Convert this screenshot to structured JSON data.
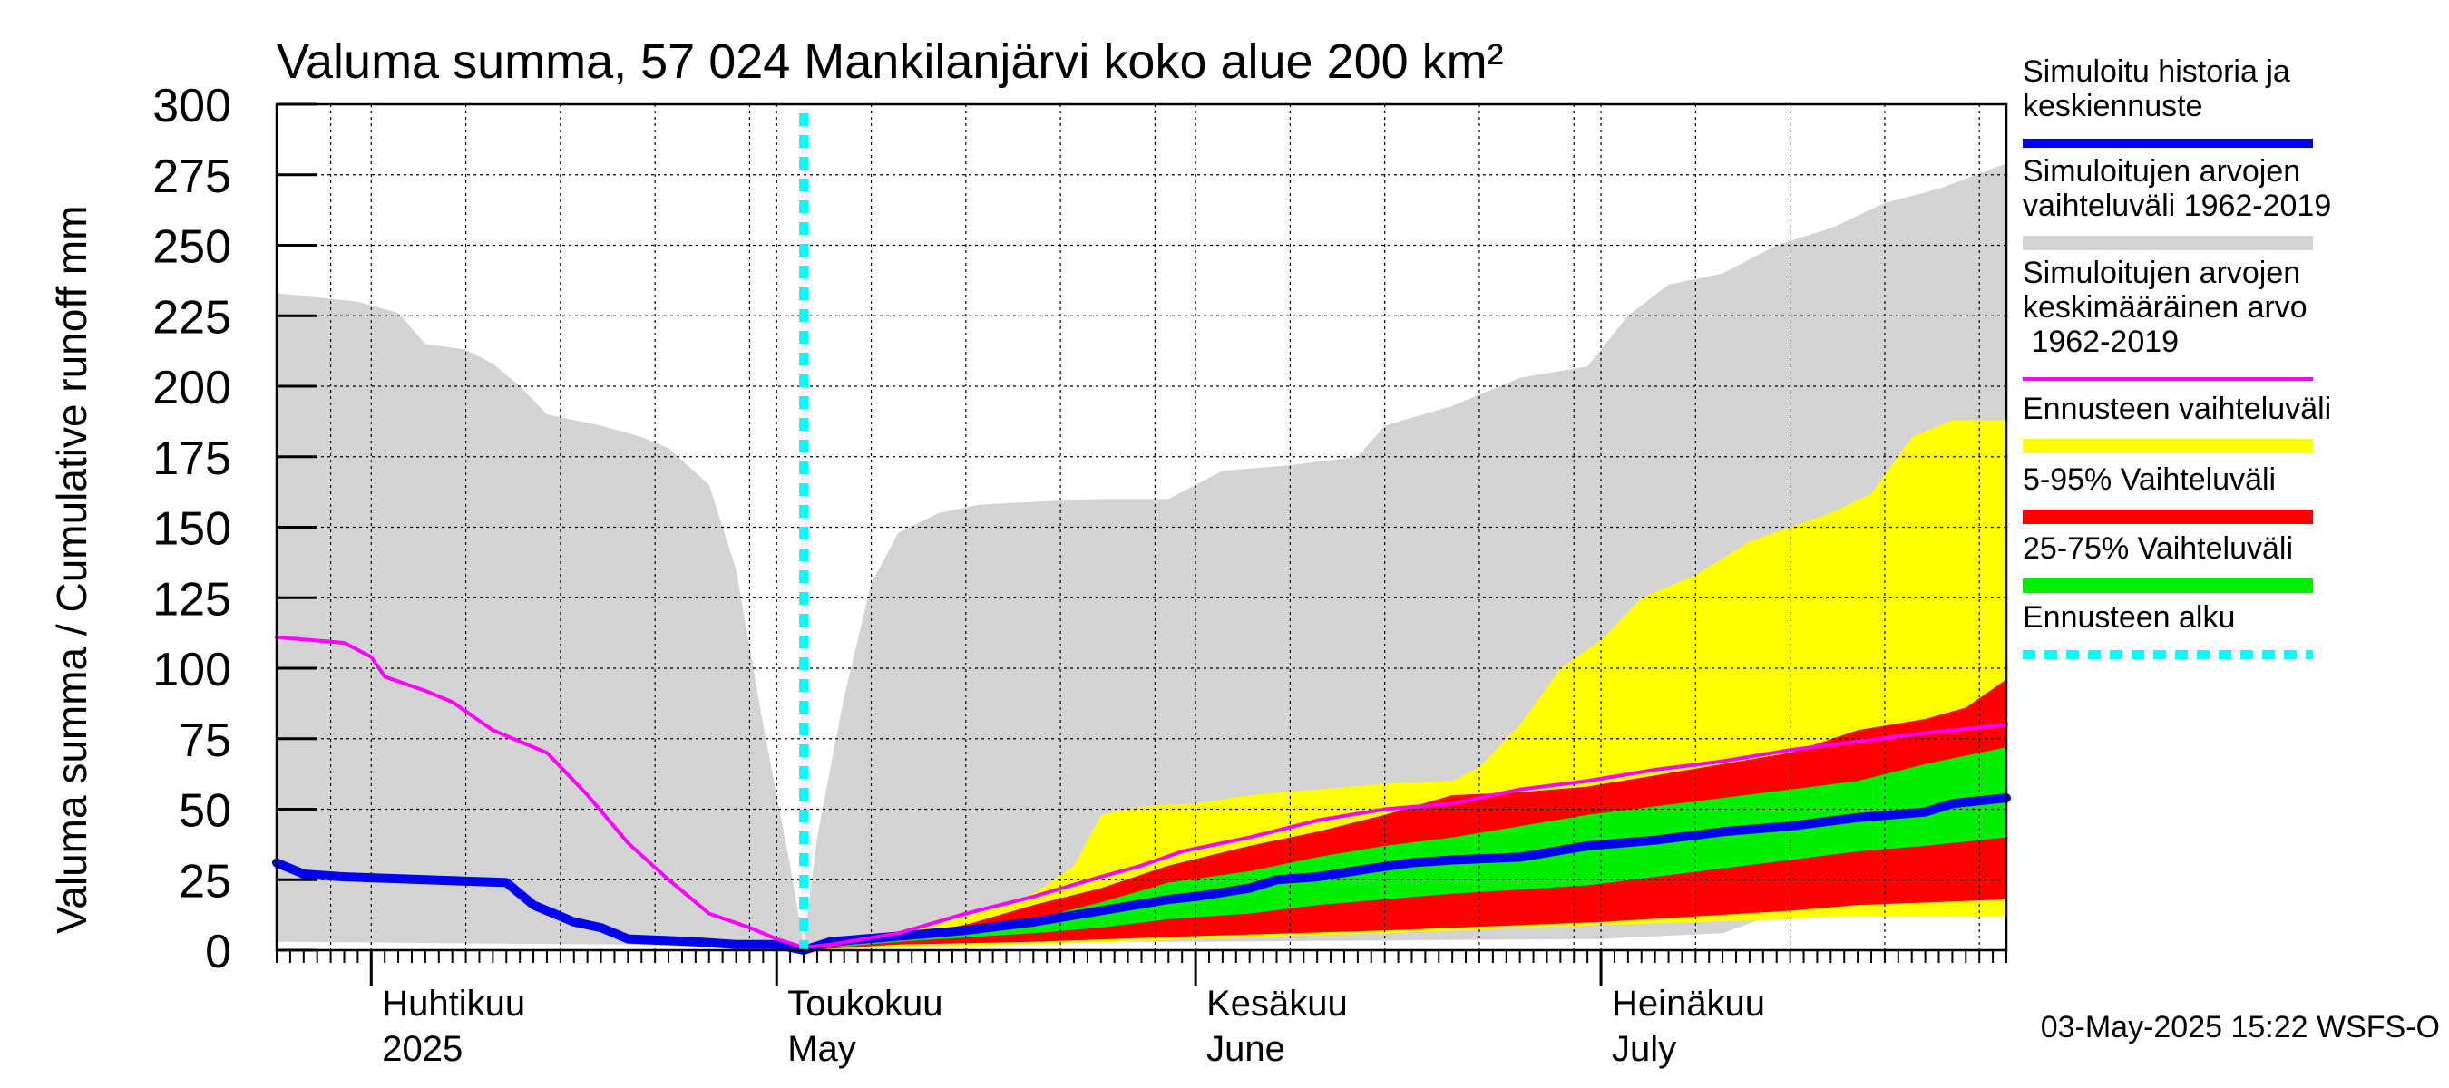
{
  "chart_data": {
    "type": "area",
    "title": "Valuma summa, 57 024 Mankilanjärvi koko alue 200 km²",
    "ylabel": "Valuma summa / Cumulative runoff    mm",
    "ylim": [
      0,
      300
    ],
    "yticks": [
      0,
      25,
      50,
      75,
      100,
      125,
      150,
      175,
      200,
      225,
      250,
      275,
      300
    ],
    "x_range": [
      "2025-03-25",
      "2025-07-31"
    ],
    "forecast_start": "2025-05-03",
    "grid": true,
    "legend_position": "right",
    "month_labels": [
      {
        "date": "2025-04-01",
        "fi": "Huhtikuu",
        "en": "2025"
      },
      {
        "date": "2025-05-01",
        "fi": "Toukokuu",
        "en": "May"
      },
      {
        "date": "2025-06-01",
        "fi": "Kesäkuu",
        "en": "June"
      },
      {
        "date": "2025-07-01",
        "fi": "Heinäkuu",
        "en": "July"
      }
    ],
    "timestamp": "03-May-2025 15:22 WSFS-O",
    "legend": [
      {
        "label": "Simuloitu historia ja keskiennuste",
        "color": "#0000ee",
        "style": "thick-line"
      },
      {
        "label": "Simuloitujen arvojen vaihteluväli 1962-2019",
        "color": "#d3d3d3",
        "style": "band"
      },
      {
        "label": "Simuloitujen arvojen keskimääräinen arvo 1962-2019",
        "color": "#ff00ff",
        "style": "line"
      },
      {
        "label": "Ennusteen vaihteluväli",
        "color": "#ffff00",
        "style": "band"
      },
      {
        "label": "5-95% Vaihteluväli",
        "color": "#ff0000",
        "style": "band"
      },
      {
        "label": "25-75% Vaihteluväli",
        "color": "#00ee00",
        "style": "band"
      },
      {
        "label": "Ennusteen alku",
        "color": "#00ffff",
        "style": "dashed"
      }
    ],
    "series": [
      {
        "name": "Simulaatio historia / keskiennuste",
        "points": [
          [
            "2025-03-25",
            31
          ],
          [
            "2025-03-27",
            27
          ],
          [
            "2025-03-30",
            26
          ],
          [
            "2025-04-05",
            25
          ],
          [
            "2025-04-11",
            24
          ],
          [
            "2025-04-13",
            16
          ],
          [
            "2025-04-16",
            10
          ],
          [
            "2025-04-18",
            8
          ],
          [
            "2025-04-20",
            4
          ],
          [
            "2025-04-25",
            3
          ],
          [
            "2025-04-28",
            2
          ],
          [
            "2025-05-01",
            2
          ],
          [
            "2025-05-03",
            0
          ],
          [
            "2025-05-05",
            3
          ],
          [
            "2025-05-10",
            5
          ],
          [
            "2025-05-15",
            7
          ],
          [
            "2025-05-20",
            10
          ],
          [
            "2025-05-25",
            14
          ],
          [
            "2025-05-30",
            18
          ],
          [
            "2025-06-01",
            19
          ],
          [
            "2025-06-05",
            22
          ],
          [
            "2025-06-07",
            25
          ],
          [
            "2025-06-10",
            26
          ],
          [
            "2025-06-14",
            29
          ],
          [
            "2025-06-17",
            31
          ],
          [
            "2025-06-20",
            32
          ],
          [
            "2025-06-25",
            33
          ],
          [
            "2025-06-30",
            37
          ],
          [
            "2025-07-05",
            39
          ],
          [
            "2025-07-10",
            42
          ],
          [
            "2025-07-15",
            44
          ],
          [
            "2025-07-20",
            47
          ],
          [
            "2025-07-25",
            49
          ],
          [
            "2025-07-27",
            52
          ],
          [
            "2025-07-31",
            54
          ]
        ]
      },
      {
        "name": "Keskimääräinen arvo 1962-2019",
        "points": [
          [
            "2025-03-25",
            111
          ],
          [
            "2025-03-30",
            109
          ],
          [
            "2025-04-01",
            104
          ],
          [
            "2025-04-02",
            97
          ],
          [
            "2025-04-05",
            92
          ],
          [
            "2025-04-07",
            88
          ],
          [
            "2025-04-10",
            78
          ],
          [
            "2025-04-12",
            74
          ],
          [
            "2025-04-14",
            70
          ],
          [
            "2025-04-17",
            55
          ],
          [
            "2025-04-20",
            38
          ],
          [
            "2025-04-23",
            25
          ],
          [
            "2025-04-26",
            13
          ],
          [
            "2025-04-29",
            8
          ],
          [
            "2025-05-01",
            4
          ],
          [
            "2025-05-03",
            1
          ],
          [
            "2025-05-05",
            2
          ],
          [
            "2025-05-10",
            6
          ],
          [
            "2025-05-15",
            13
          ],
          [
            "2025-05-20",
            19
          ],
          [
            "2025-05-25",
            26
          ],
          [
            "2025-05-28",
            30
          ],
          [
            "2025-05-31",
            35
          ],
          [
            "2025-06-05",
            40
          ],
          [
            "2025-06-10",
            46
          ],
          [
            "2025-06-15",
            50
          ],
          [
            "2025-06-20",
            52
          ],
          [
            "2025-06-25",
            57
          ],
          [
            "2025-06-30",
            60
          ],
          [
            "2025-07-05",
            64
          ],
          [
            "2025-07-10",
            67
          ],
          [
            "2025-07-15",
            71
          ],
          [
            "2025-07-20",
            74
          ],
          [
            "2025-07-25",
            77
          ],
          [
            "2025-07-31",
            80
          ]
        ]
      }
    ],
    "bands": [
      {
        "name": "Simuloitujen arvojen vaihteluväli 1962-2019",
        "upper": [
          [
            "2025-03-25",
            233
          ],
          [
            "2025-03-31",
            230
          ],
          [
            "2025-04-03",
            226
          ],
          [
            "2025-04-05",
            215
          ],
          [
            "2025-04-08",
            213
          ],
          [
            "2025-04-10",
            208
          ],
          [
            "2025-04-12",
            200
          ],
          [
            "2025-04-14",
            190
          ],
          [
            "2025-04-18",
            186
          ],
          [
            "2025-04-21",
            182
          ],
          [
            "2025-04-23",
            178
          ],
          [
            "2025-04-26",
            165
          ],
          [
            "2025-04-28",
            135
          ],
          [
            "2025-04-30",
            80
          ],
          [
            "2025-05-02",
            30
          ],
          [
            "2025-05-03",
            2
          ],
          [
            "2025-05-04",
            40
          ],
          [
            "2025-05-06",
            90
          ],
          [
            "2025-05-08",
            130
          ],
          [
            "2025-05-10",
            148
          ],
          [
            "2025-05-13",
            155
          ],
          [
            "2025-05-16",
            158
          ],
          [
            "2025-05-20",
            159
          ],
          [
            "2025-05-25",
            160
          ],
          [
            "2025-05-30",
            160
          ],
          [
            "2025-06-01",
            165
          ],
          [
            "2025-06-03",
            170
          ],
          [
            "2025-06-08",
            172
          ],
          [
            "2025-06-13",
            175
          ],
          [
            "2025-06-15",
            186
          ],
          [
            "2025-06-20",
            193
          ],
          [
            "2025-06-25",
            203
          ],
          [
            "2025-06-30",
            207
          ],
          [
            "2025-07-03",
            225
          ],
          [
            "2025-07-06",
            236
          ],
          [
            "2025-07-10",
            240
          ],
          [
            "2025-07-14",
            250
          ],
          [
            "2025-07-18",
            256
          ],
          [
            "2025-07-22",
            265
          ],
          [
            "2025-07-26",
            270
          ],
          [
            "2025-07-31",
            279
          ]
        ],
        "lower": [
          [
            "2025-03-25",
            3
          ],
          [
            "2025-04-20",
            2
          ],
          [
            "2025-05-03",
            0
          ],
          [
            "2025-05-10",
            3
          ],
          [
            "2025-06-01",
            3
          ],
          [
            "2025-07-01",
            4
          ],
          [
            "2025-07-10",
            6
          ],
          [
            "2025-07-14",
            13
          ],
          [
            "2025-07-18",
            22
          ],
          [
            "2025-07-22",
            24
          ],
          [
            "2025-07-31",
            25
          ]
        ]
      },
      {
        "name": "Ennusteen vaihteluväli",
        "upper": [
          [
            "2025-05-03",
            0
          ],
          [
            "2025-05-10",
            6
          ],
          [
            "2025-05-15",
            12
          ],
          [
            "2025-05-20",
            20
          ],
          [
            "2025-05-23",
            30
          ],
          [
            "2025-05-25",
            48
          ],
          [
            "2025-05-28",
            51
          ],
          [
            "2025-06-01",
            52
          ],
          [
            "2025-06-05",
            55
          ],
          [
            "2025-06-10",
            57
          ],
          [
            "2025-06-15",
            59
          ],
          [
            "2025-06-20",
            60
          ],
          [
            "2025-06-22",
            65
          ],
          [
            "2025-06-25",
            80
          ],
          [
            "2025-06-28",
            100
          ],
          [
            "2025-07-01",
            110
          ],
          [
            "2025-07-04",
            125
          ],
          [
            "2025-07-08",
            133
          ],
          [
            "2025-07-12",
            145
          ],
          [
            "2025-07-18",
            155
          ],
          [
            "2025-07-21",
            162
          ],
          [
            "2025-07-24",
            182
          ],
          [
            "2025-07-27",
            188
          ],
          [
            "2025-07-31",
            188
          ]
        ],
        "lower": [
          [
            "2025-05-03",
            0
          ],
          [
            "2025-05-10",
            1
          ],
          [
            "2025-05-20",
            2
          ],
          [
            "2025-06-01",
            4
          ],
          [
            "2025-06-15",
            6
          ],
          [
            "2025-07-01",
            9
          ],
          [
            "2025-07-15",
            11
          ],
          [
            "2025-07-18",
            12
          ],
          [
            "2025-07-31",
            12
          ]
        ]
      },
      {
        "name": "5-95% Vaihteluväli",
        "upper": [
          [
            "2025-05-03",
            0
          ],
          [
            "2025-05-10",
            5
          ],
          [
            "2025-05-15",
            9
          ],
          [
            "2025-05-20",
            16
          ],
          [
            "2025-05-25",
            22
          ],
          [
            "2025-05-30",
            30
          ],
          [
            "2025-06-05",
            37
          ],
          [
            "2025-06-10",
            42
          ],
          [
            "2025-06-15",
            48
          ],
          [
            "2025-06-20",
            55
          ],
          [
            "2025-06-25",
            56
          ],
          [
            "2025-06-30",
            58
          ],
          [
            "2025-07-05",
            62
          ],
          [
            "2025-07-10",
            66
          ],
          [
            "2025-07-15",
            70
          ],
          [
            "2025-07-20",
            78
          ],
          [
            "2025-07-25",
            82
          ],
          [
            "2025-07-28",
            86
          ],
          [
            "2025-07-31",
            96
          ]
        ],
        "lower": [
          [
            "2025-05-03",
            0
          ],
          [
            "2025-05-10",
            2
          ],
          [
            "2025-05-20",
            3
          ],
          [
            "2025-06-01",
            5
          ],
          [
            "2025-06-15",
            7
          ],
          [
            "2025-07-01",
            10
          ],
          [
            "2025-07-15",
            14
          ],
          [
            "2025-07-20",
            16
          ],
          [
            "2025-07-31",
            18
          ]
        ]
      },
      {
        "name": "25-75% Vaihteluväli",
        "upper": [
          [
            "2025-05-03",
            0
          ],
          [
            "2025-05-10",
            4
          ],
          [
            "2025-05-15",
            7
          ],
          [
            "2025-05-20",
            11
          ],
          [
            "2025-05-25",
            17
          ],
          [
            "2025-05-30",
            24
          ],
          [
            "2025-06-05",
            28
          ],
          [
            "2025-06-10",
            33
          ],
          [
            "2025-06-15",
            37
          ],
          [
            "2025-06-20",
            40
          ],
          [
            "2025-06-25",
            44
          ],
          [
            "2025-06-30",
            48
          ],
          [
            "2025-07-05",
            51
          ],
          [
            "2025-07-10",
            54
          ],
          [
            "2025-07-15",
            57
          ],
          [
            "2025-07-20",
            60
          ],
          [
            "2025-07-25",
            66
          ],
          [
            "2025-07-31",
            72
          ]
        ],
        "lower": [
          [
            "2025-05-03",
            0
          ],
          [
            "2025-05-10",
            3
          ],
          [
            "2025-05-20",
            6
          ],
          [
            "2025-05-25",
            8
          ],
          [
            "2025-05-30",
            11
          ],
          [
            "2025-06-05",
            13
          ],
          [
            "2025-06-10",
            16
          ],
          [
            "2025-06-15",
            18
          ],
          [
            "2025-06-20",
            20
          ],
          [
            "2025-06-30",
            23
          ],
          [
            "2025-07-05",
            26
          ],
          [
            "2025-07-10",
            29
          ],
          [
            "2025-07-15",
            32
          ],
          [
            "2025-07-20",
            35
          ],
          [
            "2025-07-25",
            37
          ],
          [
            "2025-07-31",
            40
          ]
        ]
      }
    ]
  }
}
